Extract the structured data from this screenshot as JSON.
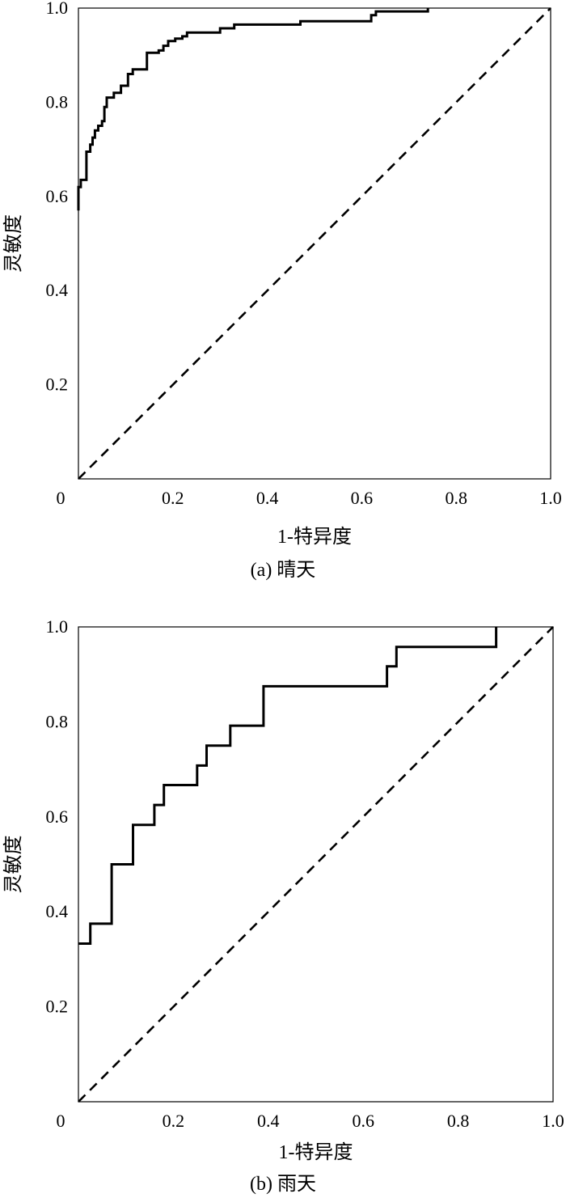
{
  "chart_data": [
    {
      "type": "line",
      "caption": "(a) 晴天",
      "xlabel": "1-特异度",
      "ylabel": "灵敏度",
      "xlim": [
        0,
        1
      ],
      "ylim": [
        0,
        1
      ],
      "x_ticks": [
        "0",
        "0.2",
        "0.4",
        "0.6",
        "0.8",
        "1.0"
      ],
      "y_ticks": [
        "0.2",
        "0.4",
        "0.6",
        "0.8",
        "1.0"
      ],
      "grid": false,
      "series": [
        {
          "style": "solid",
          "x": [
            0,
            0,
            0.005,
            0.005,
            0.017,
            0.017,
            0.025,
            0.025,
            0.03,
            0.03,
            0.035,
            0.035,
            0.042,
            0.042,
            0.05,
            0.05,
            0.055,
            0.055,
            0.06,
            0.06,
            0.065,
            0.065,
            0.075,
            0.075,
            0.09,
            0.09,
            0.105,
            0.105,
            0.115,
            0.115,
            0.12,
            0.12,
            0.145,
            0.145,
            0.17,
            0.17,
            0.18,
            0.18,
            0.19,
            0.19,
            0.205,
            0.205,
            0.22,
            0.22,
            0.23,
            0.23,
            0.3,
            0.3,
            0.33,
            0.33,
            0.47,
            0.47,
            0.62,
            0.62,
            0.63,
            0.63,
            0.74,
            0.74
          ],
          "y": [
            0.57,
            0.62,
            0.62,
            0.635,
            0.635,
            0.695,
            0.695,
            0.71,
            0.71,
            0.725,
            0.725,
            0.74,
            0.74,
            0.75,
            0.75,
            0.76,
            0.76,
            0.79,
            0.79,
            0.81,
            0.81,
            0.81,
            0.81,
            0.82,
            0.82,
            0.835,
            0.835,
            0.86,
            0.86,
            0.87,
            0.87,
            0.87,
            0.87,
            0.905,
            0.905,
            0.91,
            0.91,
            0.92,
            0.92,
            0.93,
            0.93,
            0.935,
            0.935,
            0.94,
            0.94,
            0.948,
            0.948,
            0.957,
            0.957,
            0.965,
            0.965,
            0.972,
            0.972,
            0.985,
            0.985,
            0.993,
            0.993,
            1.0
          ]
        },
        {
          "style": "dashed",
          "x": [
            0,
            1
          ],
          "y": [
            0,
            1
          ]
        }
      ]
    },
    {
      "type": "line",
      "caption": "(b) 雨天",
      "xlabel": "1-特异度",
      "ylabel": "灵敏度",
      "xlim": [
        0,
        1
      ],
      "ylim": [
        0,
        1
      ],
      "x_ticks": [
        "0",
        "0.2",
        "0.4",
        "0.6",
        "0.8",
        "1.0"
      ],
      "y_ticks": [
        "0.2",
        "0.4",
        "0.6",
        "0.8",
        "1.0"
      ],
      "grid": false,
      "series": [
        {
          "style": "solid",
          "x": [
            0,
            0.025,
            0.025,
            0.07,
            0.07,
            0.115,
            0.115,
            0.16,
            0.16,
            0.18,
            0.18,
            0.25,
            0.25,
            0.27,
            0.27,
            0.32,
            0.32,
            0.39,
            0.39,
            0.65,
            0.65,
            0.67,
            0.67,
            0.88,
            0.88
          ],
          "y": [
            0.333,
            0.333,
            0.375,
            0.375,
            0.5,
            0.5,
            0.583,
            0.583,
            0.625,
            0.625,
            0.667,
            0.667,
            0.708,
            0.708,
            0.75,
            0.75,
            0.792,
            0.792,
            0.875,
            0.875,
            0.917,
            0.917,
            0.958,
            0.958,
            1.0
          ]
        },
        {
          "style": "dashed",
          "x": [
            0,
            1
          ],
          "y": [
            0,
            1
          ]
        }
      ]
    }
  ]
}
